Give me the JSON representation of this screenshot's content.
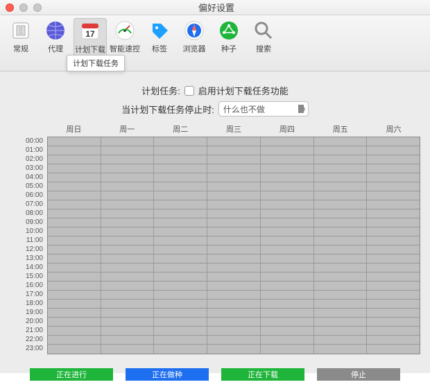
{
  "window": {
    "title": "偏好设置"
  },
  "toolbar": {
    "items": [
      {
        "label": "常规",
        "icon": "general"
      },
      {
        "label": "代理",
        "icon": "globe"
      },
      {
        "label": "计划下载任务",
        "icon": "calendar",
        "active": true
      },
      {
        "label": "智能速控",
        "icon": "gauge"
      },
      {
        "label": "标签",
        "icon": "tag"
      },
      {
        "label": "浏览器",
        "icon": "compass"
      },
      {
        "label": "种子",
        "icon": "seed"
      },
      {
        "label": "搜索",
        "icon": "search"
      }
    ]
  },
  "tooltip": "计划下载任务",
  "form": {
    "schedule_label": "计划任务:",
    "enable_label": "启用计划下载任务功能",
    "stop_label": "当计划下载任务停止时:",
    "stop_action": "什么也不做"
  },
  "schedule": {
    "days": [
      "周日",
      "周一",
      "周二",
      "周三",
      "周四",
      "周五",
      "周六"
    ],
    "hours": [
      "00:00",
      "01:00",
      "02:00",
      "03:00",
      "04:00",
      "05:00",
      "06:00",
      "07:00",
      "08:00",
      "09:00",
      "10:00",
      "11:00",
      "12:00",
      "13:00",
      "14:00",
      "15:00",
      "16:00",
      "17:00",
      "18:00",
      "19:00",
      "20:00",
      "21:00",
      "22:00",
      "23:00"
    ],
    "cell_color": "#bfbfbf",
    "grid_line_color": "#999999"
  },
  "legend": [
    {
      "label": "正在进行",
      "color": "#1eb53a"
    },
    {
      "label": "正在做种",
      "color": "#1e6ef0"
    },
    {
      "label": "正在下载",
      "color": "#1eb53a"
    },
    {
      "label": "停止",
      "color": "#8a8a8a"
    }
  ],
  "icons": {
    "general": {
      "bg": "#ffffff",
      "stroke": "#888"
    },
    "globe": {
      "bg": "#6a5acd"
    },
    "calendar": {
      "bg": "#ffffff",
      "accent": "#e03b3b",
      "text": "17"
    },
    "gauge": {
      "bg": "#ffffff"
    },
    "tag": {
      "bg": "#1ea0ff"
    },
    "compass": {
      "bg": "#ffffff",
      "accent": "#1e6ef0"
    },
    "seed": {
      "bg": "#1eb53a"
    },
    "search": {
      "bg": "#8a8a8a"
    }
  }
}
